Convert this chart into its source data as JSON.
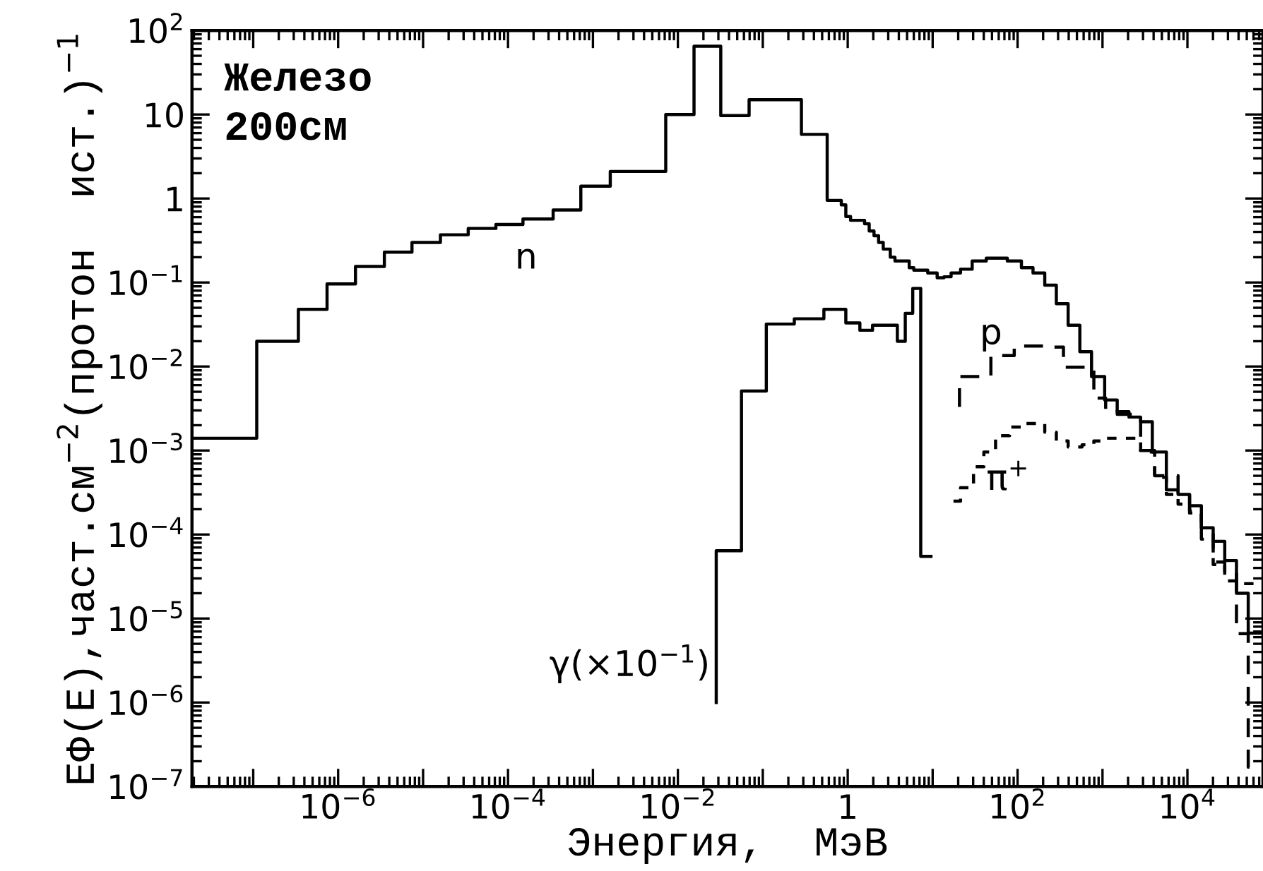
{
  "chart_data": {
    "type": "step",
    "xlabel": "Энергия,  МэВ",
    "ylabel": "ЕΦ(Е),част.см$^{−2}$(протон  ист.)$^{−1}$",
    "log": "xy",
    "xlim": [
      1.9e-08,
      77600
    ],
    "ylim": [
      1e-07,
      100
    ],
    "xticks": [
      {
        "value": 1e-07,
        "label": null
      },
      {
        "value": 1e-06,
        "label": "10$^{−6}$"
      },
      {
        "value": 1e-05,
        "label": null
      },
      {
        "value": 0.0001,
        "label": "10$^{−4}$"
      },
      {
        "value": 0.001,
        "label": null
      },
      {
        "value": 0.01,
        "label": "10$^{−2}$"
      },
      {
        "value": 0.1,
        "label": null
      },
      1,
      {
        "value": 10,
        "label": null
      },
      {
        "value": 100,
        "label": "10$^{2}$"
      },
      {
        "value": 1000,
        "label": null
      },
      {
        "value": 10000,
        "label": "10$^{4}$"
      }
    ],
    "yticks": [
      {
        "value": 1e-07,
        "label": "10$^{−7}$"
      },
      {
        "value": 1e-06,
        "label": "10$^{−6}$"
      },
      {
        "value": 1e-05,
        "label": "10$^{−5}$"
      },
      {
        "value": 0.0001,
        "label": "10$^{−4}$"
      },
      {
        "value": 0.001,
        "label": "10$^{−3}$"
      },
      {
        "value": 0.01,
        "label": "10$^{−2}$"
      },
      {
        "value": 0.1,
        "label": "10$^{−1}$"
      },
      1,
      10,
      {
        "value": 100,
        "label": "10$^{2}$"
      }
    ],
    "grid": false,
    "series": [
      {
        "name": "n",
        "color": "#000000",
        "line_style": "solid",
        "x": [
          1.9e-08,
          1.1e-07,
          3.4e-07,
          7.4e-07,
          1.6e-06,
          3.5e-06,
          7.4e-06,
          1.6e-05,
          3.4e-05,
          7.2e-05,
          0.00015,
          0.00034,
          0.00072,
          0.0016,
          0.0034,
          0.0072,
          0.0155,
          0.032,
          0.069,
          0.285,
          0.573,
          0.84,
          0.95,
          1.08,
          1.58,
          1.79,
          2.04,
          2.31,
          2.62,
          3.17,
          3.6,
          5.3,
          6.0,
          8.75,
          11.3,
          13.6,
          16.5,
          21.3,
          29.2,
          42.8,
          75.7,
          111,
          152,
          209,
          286,
          394,
          541,
          743,
          1060,
          1490,
          2050,
          2810,
          3860,
          5650,
          7760,
          10600,
          14600,
          20100,
          27500,
          37800,
          52000,
          77600
        ],
        "values": [
          0.0014,
          0.02,
          0.048,
          0.096,
          0.155,
          0.23,
          0.3,
          0.37,
          0.44,
          0.49,
          0.57,
          0.73,
          1.4,
          2.1,
          2.1,
          10,
          65,
          9.7,
          15,
          5.8,
          0.95,
          0.84,
          0.61,
          0.55,
          0.5,
          0.41,
          0.36,
          0.3,
          0.25,
          0.2,
          0.18,
          0.15,
          0.14,
          0.13,
          0.114,
          0.117,
          0.13,
          0.144,
          0.18,
          0.195,
          0.18,
          0.15,
          0.13,
          0.093,
          0.056,
          0.031,
          0.015,
          0.0076,
          0.004,
          0.0029,
          0.0025,
          0.0022,
          0.00096,
          0.00034,
          0.0003,
          0.00022,
          0.00012,
          8.3e-05,
          4.9e-05,
          2e-05,
          6.7e-06,
          6.7e-06
        ]
      },
      {
        "name": "γ(×10$^{−1}$)",
        "color": "#000000",
        "line_style": "solid",
        "x": [
          0.0283,
          0.0283,
          0.0561,
          0.11,
          0.235,
          0.524,
          0.95,
          1.39,
          1.96,
          3.84,
          4.76,
          5.83,
          7.24,
          9.55
        ],
        "values": [
          1e-06,
          6.4e-05,
          0.0051,
          0.032,
          0.037,
          0.048,
          0.033,
          0.027,
          0.031,
          0.02,
          0.043,
          0.085,
          5.5e-05,
          5.5e-05
        ]
      },
      {
        "name": "p",
        "color": "#000000",
        "line_style": "dashed",
        "x": [
          20.7,
          20.7,
          48.5,
          91.4,
          209,
          347,
          791,
          1090,
          1490,
          2810,
          4110,
          7760,
          10600,
          14600,
          20100,
          27500,
          37800,
          52000,
          77600
        ],
        "values": [
          0.0033,
          0.0076,
          0.0135,
          0.0175,
          0.017,
          0.0098,
          0.0042,
          0.0031,
          0.0027,
          0.001,
          0.0005,
          0.0003,
          0.00019,
          0.000107,
          4.7e-05,
          3.6e-05,
          6.6e-06,
          1.7e-07,
          1.7e-07
        ]
      },
      {
        "name": "π$^{+}$",
        "color": "#000000",
        "line_style": "dotted",
        "x": [
          17.6,
          21.3,
          30.3,
          40.1,
          55.1,
          80.5,
          111,
          209,
          286,
          394,
          575,
          791,
          1090,
          2810,
          4110,
          5650,
          7760,
          10600,
          14600,
          20100,
          27500,
          37800,
          77600
        ],
        "values": [
          0.00025,
          0.00036,
          0.00064,
          0.00096,
          0.0015,
          0.0019,
          0.0021,
          0.00165,
          0.0013,
          0.0011,
          0.00117,
          0.0013,
          0.0014,
          0.00096,
          0.00048,
          0.0003,
          0.00023,
          0.00018,
          8.8e-05,
          4.4e-05,
          2.8e-05,
          2.6e-05,
          2.6e-05
        ]
      }
    ],
    "annotations": [
      "Железо",
      "200см"
    ]
  }
}
